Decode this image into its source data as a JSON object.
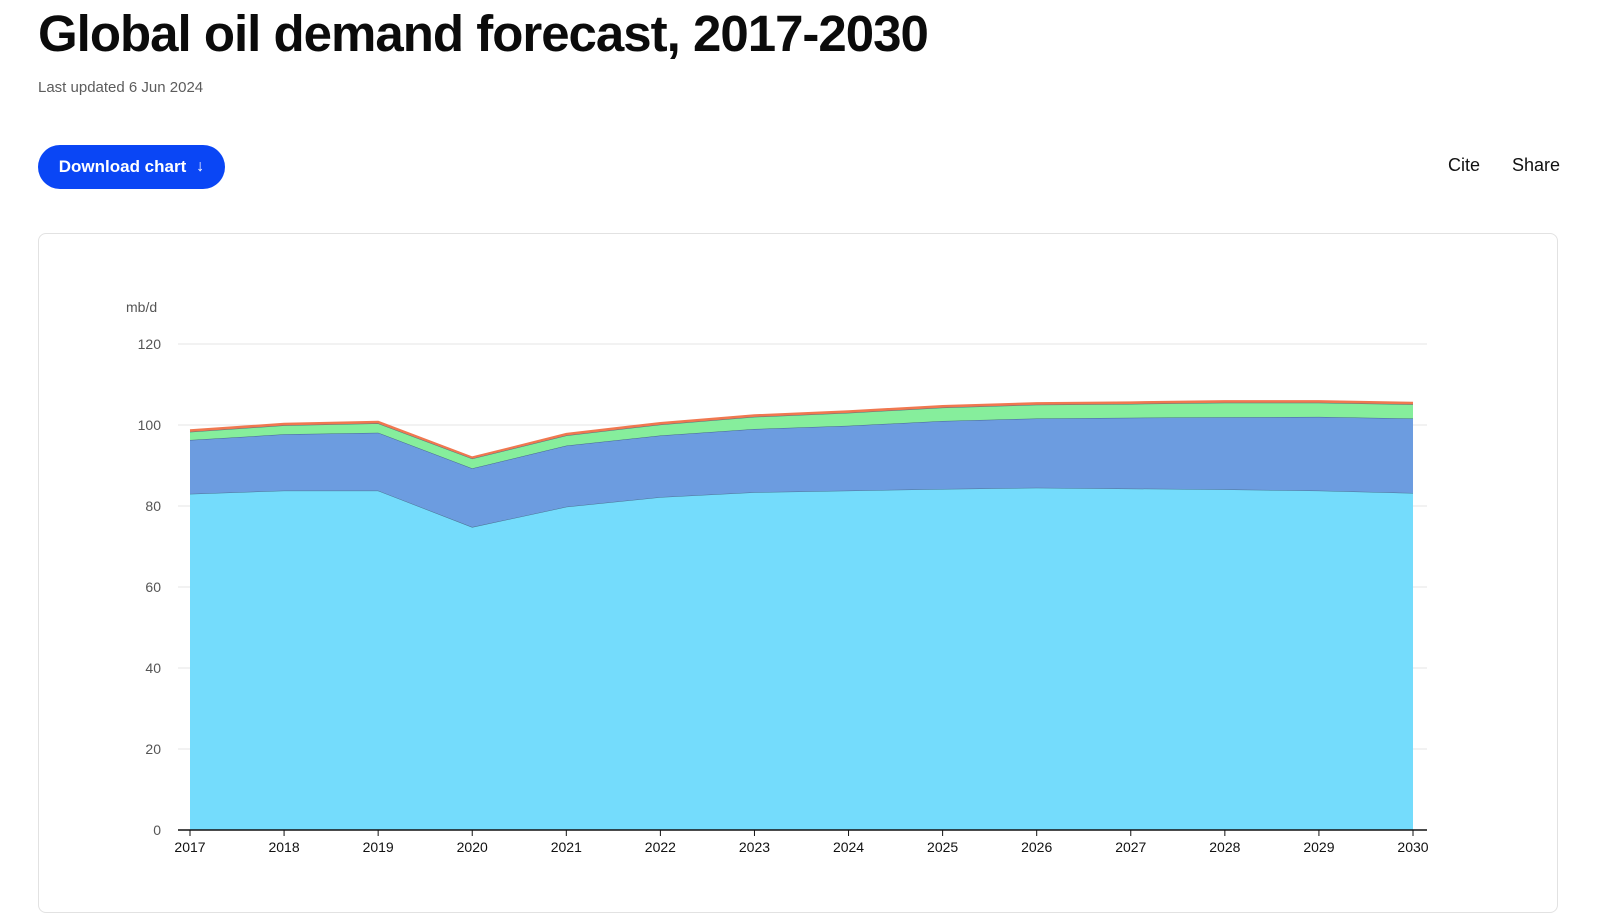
{
  "header": {
    "title": "Global oil demand forecast, 2017-2030",
    "updated": "Last updated 6 Jun 2024"
  },
  "toolbar": {
    "download_label": "Download chart",
    "download_icon": "arrow-down-icon",
    "cite_label": "Cite",
    "share_label": "Share"
  },
  "colors": {
    "accent": "#0a46f5"
  },
  "chart_data": {
    "type": "area",
    "stacked": true,
    "ylabel": "mb/d",
    "ylim": [
      0,
      120
    ],
    "yticks": [
      0,
      20,
      40,
      60,
      80,
      100,
      120
    ],
    "grid": true,
    "x": [
      "2017",
      "2018",
      "2019",
      "2020",
      "2021",
      "2022",
      "2023",
      "2024",
      "2025",
      "2026",
      "2027",
      "2028",
      "2029",
      "2030"
    ],
    "series": [
      {
        "color": "#74dcfc",
        "values": [
          83.0,
          83.8,
          83.8,
          74.8,
          79.8,
          82.2,
          83.4,
          83.8,
          84.2,
          84.5,
          84.3,
          84.1,
          83.8,
          83.2
        ]
      },
      {
        "color": "#6c9ce0",
        "values": [
          13.3,
          13.9,
          14.3,
          14.5,
          15.1,
          15.2,
          15.6,
          16.0,
          16.8,
          17.1,
          17.5,
          17.8,
          18.2,
          18.4
        ]
      },
      {
        "color": "#86ee9c",
        "values": [
          2.0,
          2.2,
          2.3,
          2.4,
          2.5,
          2.7,
          3.0,
          3.2,
          3.3,
          3.4,
          3.4,
          3.6,
          3.5,
          3.5
        ]
      },
      {
        "color": "#f07850",
        "values": [
          0.4,
          0.4,
          0.4,
          0.3,
          0.4,
          0.4,
          0.4,
          0.4,
          0.4,
          0.4,
          0.4,
          0.4,
          0.4,
          0.4
        ]
      }
    ]
  }
}
